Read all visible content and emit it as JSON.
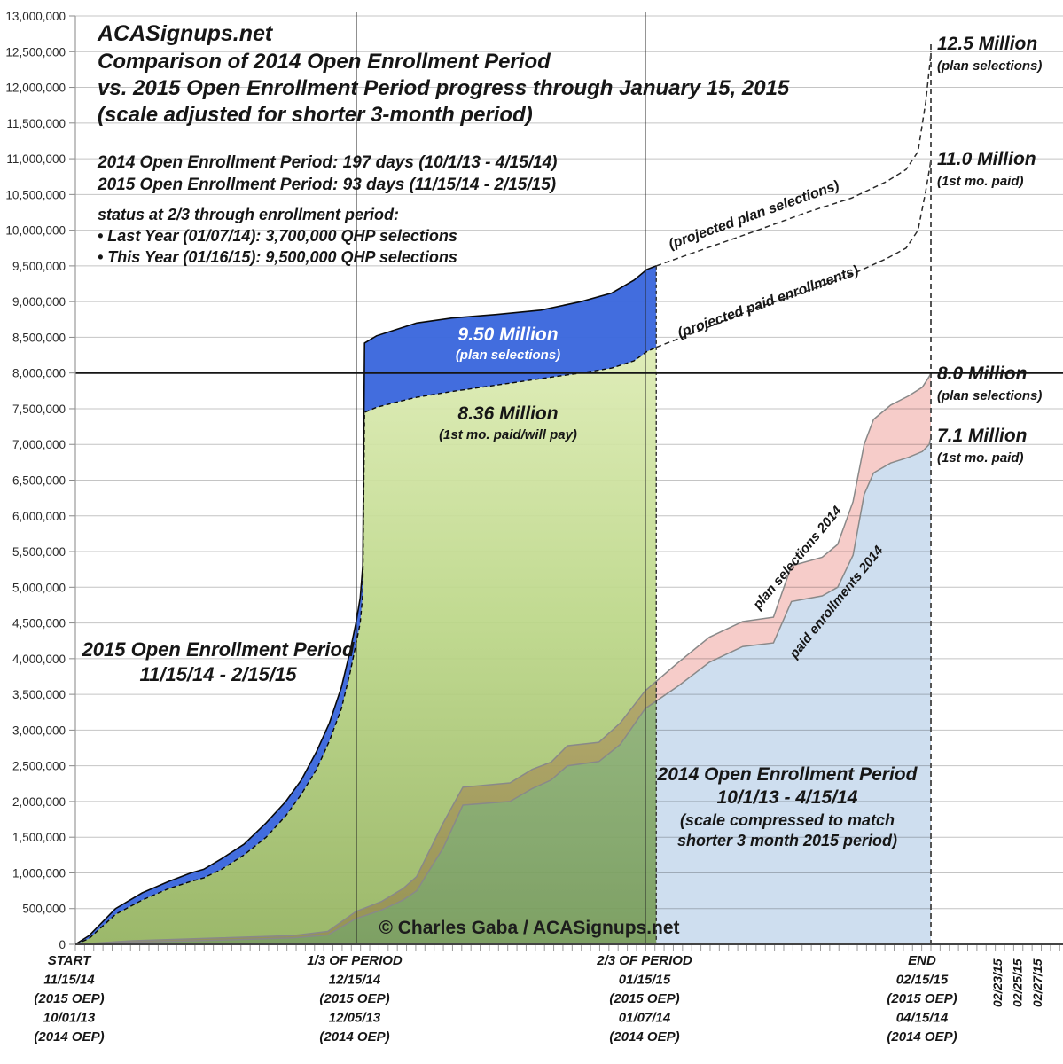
{
  "title": {
    "site": "ACASignups.net",
    "line2": "Comparison of 2014 Open Enrollment Period",
    "line3": "vs. 2015 Open Enrollment Period progress through January 15, 2015",
    "line4": "(scale adjusted for shorter 3-month period)"
  },
  "period_info": [
    "2014 Open Enrollment Period: 197 days (10/1/13 - 4/15/14)",
    "2015 Open Enrollment Period: 93 days (11/15/14 - 2/15/15)"
  ],
  "status": {
    "heading": "status at 2/3 through enrollment period:",
    "last_year": "• Last Year (01/07/14): 3,700,000 QHP selections",
    "this_year": "• This Year (01/16/15): 9,500,000 QHP selections"
  },
  "copyright": "© Charles Gaba / ACASignups.net",
  "annotations": {
    "m125": {
      "title": "12.5 Million",
      "sub": "(plan selections)"
    },
    "m110": {
      "title": "11.0 Million",
      "sub": "(1st mo. paid)"
    },
    "m950": {
      "title": "9.50 Million",
      "sub": "(plan selections)"
    },
    "m836": {
      "title": "8.36 Million",
      "sub": "(1st mo. paid/will pay)"
    },
    "m80": {
      "title": "8.0 Million",
      "sub": "(plan selections)"
    },
    "m71": {
      "title": "7.1 Million",
      "sub": "(1st mo. paid)"
    },
    "proj_sel": "(projected plan selections)",
    "proj_paid": "(projected paid enrollments)",
    "sel2014_line": "plan selections 2014",
    "paid2014_line": "paid enrollments 2014",
    "oep2015": {
      "line1": "2015 Open Enrollment Period",
      "line2": "11/15/14 - 2/15/15"
    },
    "oep2014": {
      "line1": "2014 Open Enrollment Period",
      "line2": "10/1/13 - 4/15/14",
      "line3": "(scale compressed to match",
      "line4": "shorter 3 month 2015 period)"
    }
  },
  "chart_data": {
    "type": "area",
    "title": "Comparison of 2014 Open Enrollment Period vs. 2015 Open Enrollment Period progress through January 15, 2015",
    "units": "millions of QHP selections / enrollments",
    "x_axis": {
      "description": "fraction of open enrollment period elapsed (both periods rescaled to same width)",
      "daily_ticks": 93,
      "tick_groups": [
        {
          "lines": [
            "START",
            "11/15/14",
            "(2015 OEP)",
            "10/01/13",
            "(2014 OEP)"
          ]
        },
        {
          "lines": [
            "1/3 OF PERIOD",
            "12/15/14",
            "(2015 OEP)",
            "12/05/13",
            "(2014 OEP)"
          ]
        },
        {
          "lines": [
            "2/3 OF PERIOD",
            "01/15/15",
            "(2015 OEP)",
            "01/07/14",
            "(2014 OEP)"
          ]
        },
        {
          "lines": [
            "END",
            "02/15/15",
            "(2015 OEP)",
            "04/15/14",
            "(2014 OEP)"
          ]
        }
      ],
      "rotated_date_labels": [
        "02/23/15",
        "02/25/15",
        "02/27/15"
      ]
    },
    "y_axis": {
      "min": 0,
      "max": 13000000,
      "step": 500000,
      "grid": true,
      "highlight_line_value": 8000000,
      "tick_labels": [
        "13,000,000",
        "12,500,000",
        "12,000,000",
        "11,500,000",
        "11,000,000",
        "10,500,000",
        "10,000,000",
        "9,500,000",
        "9,000,000",
        "8,500,000",
        "8,000,000",
        "7,500,000",
        "7,000,000",
        "6,500,000",
        "6,000,000",
        "5,500,000",
        "5,000,000",
        "4,500,000",
        "4,000,000",
        "3,500,000",
        "3,000,000",
        "2,500,000",
        "2,000,000",
        "1,500,000",
        "1,000,000",
        "500,000",
        "0"
      ]
    },
    "colors": {
      "blue_2015": "#3a67dd",
      "green_top": "#dcebb2",
      "green_mid": "#bcd788",
      "green_bottom": "#93b25e",
      "lightblue_2014": "#c9daed",
      "pink_2014": "#f5c8c4",
      "edge_gray": "#898989",
      "grid": "#c4c4c4"
    },
    "series": [
      {
        "name": "2015 plan selections",
        "style": "area-blue-solid-black-edge",
        "end_value_millions": 9.5,
        "points": [
          [
            0,
            0
          ],
          [
            0.016,
            0.12
          ],
          [
            0.047,
            0.5
          ],
          [
            0.078,
            0.72
          ],
          [
            0.109,
            0.88
          ],
          [
            0.135,
            1.0
          ],
          [
            0.15,
            1.05
          ],
          [
            0.171,
            1.2
          ],
          [
            0.197,
            1.4
          ],
          [
            0.223,
            1.7
          ],
          [
            0.246,
            2.0
          ],
          [
            0.264,
            2.3
          ],
          [
            0.282,
            2.7
          ],
          [
            0.297,
            3.1
          ],
          [
            0.311,
            3.6
          ],
          [
            0.321,
            4.1
          ],
          [
            0.328,
            4.5
          ],
          [
            0.333,
            4.85
          ],
          [
            0.336,
            5.3
          ],
          [
            0.338,
            8.42
          ],
          [
            0.352,
            8.52
          ],
          [
            0.378,
            8.62
          ],
          [
            0.399,
            8.7
          ],
          [
            0.44,
            8.77
          ],
          [
            0.492,
            8.82
          ],
          [
            0.544,
            8.88
          ],
          [
            0.591,
            9.0
          ],
          [
            0.627,
            9.12
          ],
          [
            0.653,
            9.3
          ],
          [
            0.668,
            9.45
          ],
          [
            0.679,
            9.5
          ]
        ]
      },
      {
        "name": "2015 1st month paid / will pay",
        "style": "area-green-dashed-edge",
        "end_value_millions": 8.36,
        "points": [
          [
            0,
            0
          ],
          [
            0.016,
            0.08
          ],
          [
            0.047,
            0.42
          ],
          [
            0.078,
            0.62
          ],
          [
            0.109,
            0.78
          ],
          [
            0.135,
            0.88
          ],
          [
            0.15,
            0.93
          ],
          [
            0.171,
            1.05
          ],
          [
            0.197,
            1.25
          ],
          [
            0.223,
            1.5
          ],
          [
            0.246,
            1.8
          ],
          [
            0.264,
            2.1
          ],
          [
            0.282,
            2.45
          ],
          [
            0.297,
            2.85
          ],
          [
            0.311,
            3.3
          ],
          [
            0.321,
            3.8
          ],
          [
            0.328,
            4.2
          ],
          [
            0.333,
            4.5
          ],
          [
            0.336,
            4.9
          ],
          [
            0.338,
            7.45
          ],
          [
            0.352,
            7.52
          ],
          [
            0.378,
            7.6
          ],
          [
            0.399,
            7.66
          ],
          [
            0.44,
            7.74
          ],
          [
            0.492,
            7.83
          ],
          [
            0.544,
            7.92
          ],
          [
            0.591,
            8.0
          ],
          [
            0.627,
            8.07
          ],
          [
            0.653,
            8.17
          ],
          [
            0.668,
            8.3
          ],
          [
            0.679,
            8.36
          ]
        ]
      },
      {
        "name": "plan selections 2014",
        "style": "band-pink-multiply",
        "end_value_millions": 8.0,
        "points": [
          [
            0,
            0
          ],
          [
            0.067,
            0.05
          ],
          [
            0.171,
            0.09
          ],
          [
            0.254,
            0.12
          ],
          [
            0.295,
            0.18
          ],
          [
            0.328,
            0.46
          ],
          [
            0.358,
            0.6
          ],
          [
            0.383,
            0.78
          ],
          [
            0.399,
            0.95
          ],
          [
            0.43,
            1.7
          ],
          [
            0.453,
            2.2
          ],
          [
            0.508,
            2.26
          ],
          [
            0.534,
            2.45
          ],
          [
            0.556,
            2.55
          ],
          [
            0.575,
            2.78
          ],
          [
            0.612,
            2.83
          ],
          [
            0.637,
            3.1
          ],
          [
            0.666,
            3.55
          ],
          [
            0.705,
            3.95
          ],
          [
            0.741,
            4.3
          ],
          [
            0.78,
            4.52
          ],
          [
            0.816,
            4.58
          ],
          [
            0.837,
            5.3
          ],
          [
            0.873,
            5.42
          ],
          [
            0.891,
            5.6
          ],
          [
            0.909,
            6.2
          ],
          [
            0.922,
            7.0
          ],
          [
            0.933,
            7.35
          ],
          [
            0.953,
            7.55
          ],
          [
            0.974,
            7.68
          ],
          [
            0.99,
            7.8
          ],
          [
            0.998,
            7.95
          ],
          [
            1,
            8.0
          ]
        ]
      },
      {
        "name": "paid enrollments 2014",
        "style": "area-lightblue-multiply",
        "end_value_millions": 7.1,
        "points": [
          [
            0,
            0
          ],
          [
            0.067,
            0.03
          ],
          [
            0.171,
            0.06
          ],
          [
            0.254,
            0.09
          ],
          [
            0.295,
            0.13
          ],
          [
            0.328,
            0.36
          ],
          [
            0.358,
            0.48
          ],
          [
            0.383,
            0.62
          ],
          [
            0.399,
            0.75
          ],
          [
            0.43,
            1.35
          ],
          [
            0.453,
            1.95
          ],
          [
            0.508,
            2.0
          ],
          [
            0.534,
            2.18
          ],
          [
            0.556,
            2.3
          ],
          [
            0.575,
            2.5
          ],
          [
            0.612,
            2.56
          ],
          [
            0.637,
            2.8
          ],
          [
            0.666,
            3.3
          ],
          [
            0.705,
            3.62
          ],
          [
            0.741,
            3.95
          ],
          [
            0.78,
            4.17
          ],
          [
            0.816,
            4.22
          ],
          [
            0.837,
            4.8
          ],
          [
            0.873,
            4.88
          ],
          [
            0.891,
            5.0
          ],
          [
            0.909,
            5.45
          ],
          [
            0.922,
            6.3
          ],
          [
            0.933,
            6.6
          ],
          [
            0.953,
            6.74
          ],
          [
            0.974,
            6.82
          ],
          [
            0.99,
            6.9
          ],
          [
            0.998,
            7.0
          ],
          [
            1,
            7.1
          ]
        ]
      },
      {
        "name": "projected plan selections",
        "style": "dashed-line",
        "end_value_millions": 12.5,
        "points": [
          [
            0.679,
            9.5
          ],
          [
            0.731,
            9.72
          ],
          [
            0.793,
            9.98
          ],
          [
            0.855,
            10.25
          ],
          [
            0.907,
            10.45
          ],
          [
            0.948,
            10.68
          ],
          [
            0.971,
            10.85
          ],
          [
            0.985,
            11.1
          ],
          [
            0.994,
            11.8
          ],
          [
            0.999,
            12.35
          ],
          [
            1,
            12.5
          ]
        ]
      },
      {
        "name": "projected paid enrollments",
        "style": "dashed-line",
        "end_value_millions": 11.0,
        "points": [
          [
            0.679,
            8.36
          ],
          [
            0.731,
            8.6
          ],
          [
            0.793,
            8.9
          ],
          [
            0.855,
            9.15
          ],
          [
            0.907,
            9.38
          ],
          [
            0.948,
            9.6
          ],
          [
            0.971,
            9.75
          ],
          [
            0.985,
            10.0
          ],
          [
            0.994,
            10.55
          ],
          [
            0.999,
            10.9
          ],
          [
            1,
            11.0
          ]
        ]
      }
    ],
    "reference_lines": {
      "vertical_solid_fractions": [
        0.3285,
        0.6663
      ],
      "vertical_dashed_at_2015_data_end_fraction": 0.679,
      "vertical_dashed_at_end_fraction": 1.0,
      "horizontal_bold_value_millions": 8.0
    }
  }
}
